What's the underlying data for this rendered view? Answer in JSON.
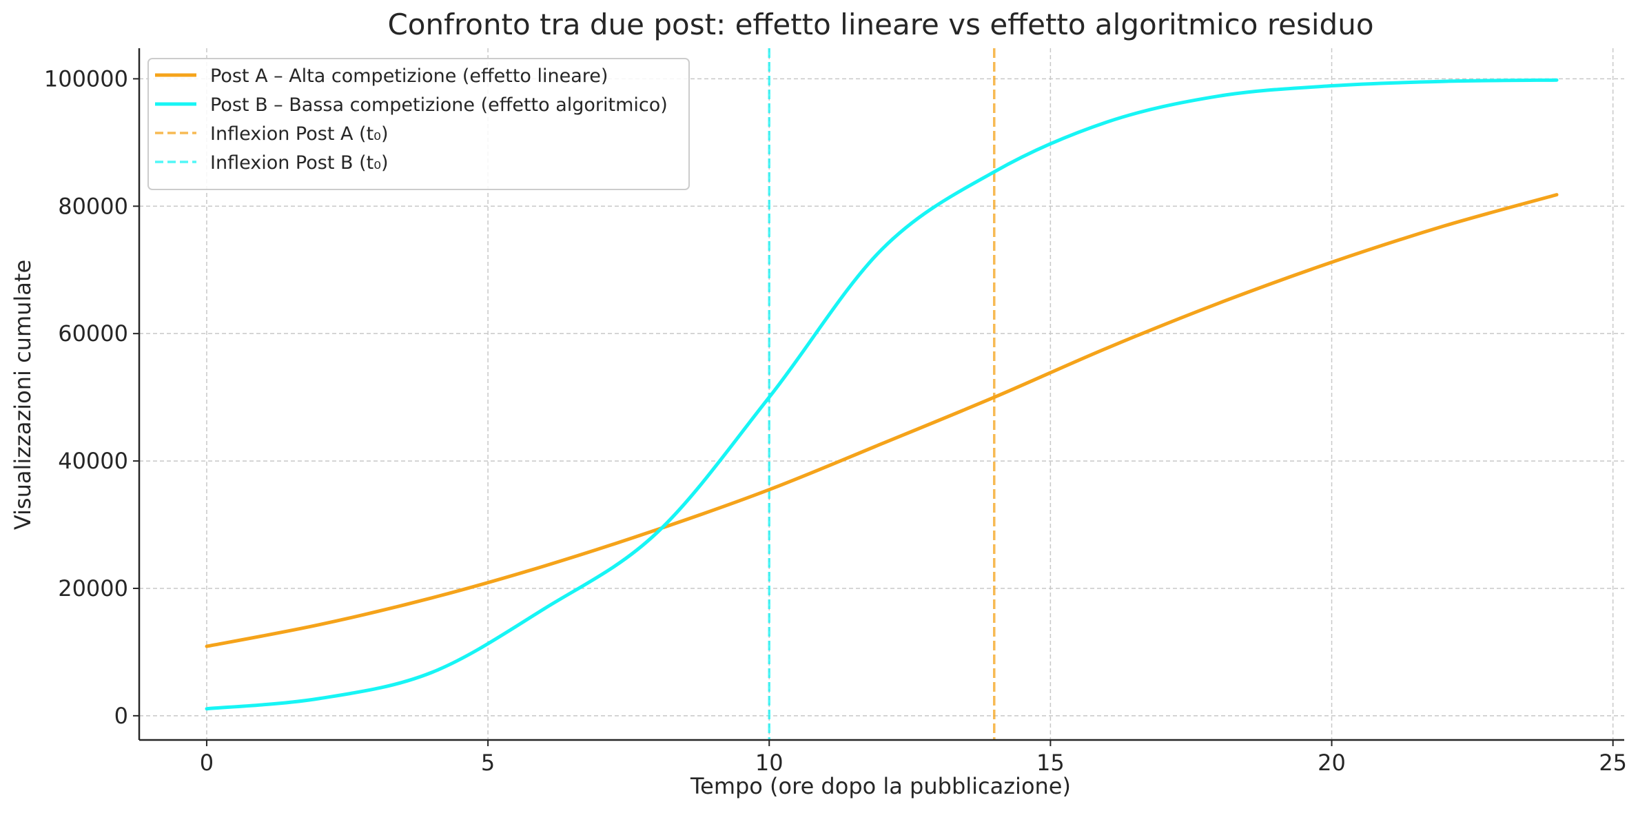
{
  "chart_data": {
    "type": "line",
    "title": "Confronto tra due post: effetto lineare vs effetto algoritmico residuo",
    "xlabel": "Tempo (ore dopo la pubblicazione)",
    "ylabel": "Visualizzazioni cumulate",
    "xlim": [
      -1.2,
      25.2
    ],
    "ylim": [
      -3800,
      104800
    ],
    "xticks": [
      0,
      5,
      10,
      15,
      20,
      25
    ],
    "yticks": [
      0,
      20000,
      40000,
      60000,
      80000,
      100000
    ],
    "grid": true,
    "legend_position": "top-left",
    "x": [
      0,
      2,
      4,
      6,
      8,
      10,
      12,
      14,
      16,
      18,
      20,
      22,
      24
    ],
    "series": [
      {
        "name": "Post A – Alta competizione (effetto lineare)",
        "color": "#f5a31a",
        "values": [
          10900,
          14300,
          18500,
          23500,
          29200,
          35500,
          42700,
          50000,
          57700,
          64800,
          71200,
          76900,
          81800
        ]
      },
      {
        "name": "Post B – Bassa competizione (effetto algoritmico)",
        "color": "#17f5f5",
        "values": [
          1100,
          2700,
          6800,
          16800,
          28700,
          50000,
          73200,
          85400,
          93200,
          97300,
          98900,
          99600,
          99800
        ]
      }
    ],
    "vlines": [
      {
        "name": "Inflexion Post A (t₀)",
        "x": 14,
        "color": "#f5a31a"
      },
      {
        "name": "Inflexion Post B (t₀)",
        "x": 10,
        "color": "#17f5f5"
      }
    ]
  }
}
